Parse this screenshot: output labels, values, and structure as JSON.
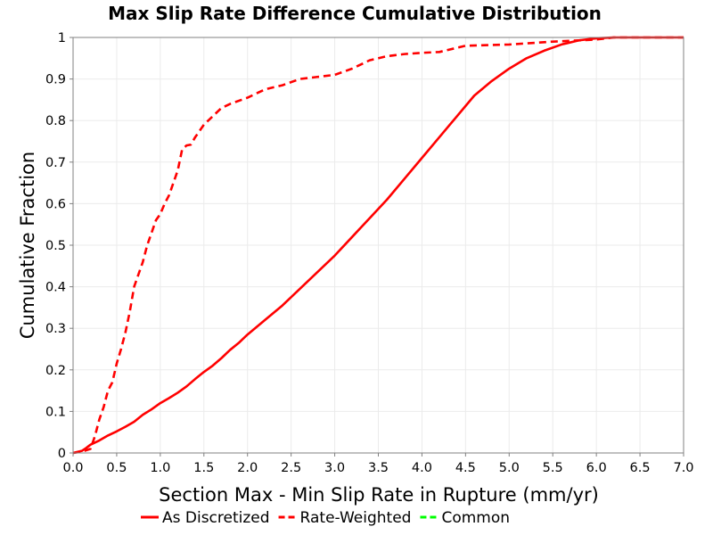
{
  "chart_data": {
    "type": "line",
    "title": "Max Slip Rate Difference Cumulative Distribution",
    "xlabel": "Section Max - Min Slip Rate in Rupture (mm/yr)",
    "ylabel": "Cumulative Fraction",
    "xlim": [
      0,
      7
    ],
    "ylim": [
      0,
      1
    ],
    "x_ticks": [
      "0.0",
      "0.5",
      "1.0",
      "1.5",
      "2.0",
      "2.5",
      "3.0",
      "3.5",
      "4.0",
      "4.5",
      "5.0",
      "5.5",
      "6.0",
      "6.5",
      "7.0"
    ],
    "y_ticks": [
      "0",
      "0.1",
      "0.2",
      "0.3",
      "0.4",
      "0.5",
      "0.6",
      "0.7",
      "0.8",
      "0.9",
      "1"
    ],
    "grid": true,
    "legend_position": "bottom",
    "series": [
      {
        "name": "As Discretized",
        "color": "#ff0000",
        "style": "solid",
        "x": [
          0.0,
          0.1,
          0.15,
          0.2,
          0.3,
          0.4,
          0.5,
          0.6,
          0.7,
          0.8,
          0.9,
          1.0,
          1.1,
          1.2,
          1.3,
          1.4,
          1.5,
          1.6,
          1.7,
          1.8,
          1.9,
          2.0,
          2.2,
          2.4,
          2.6,
          2.8,
          3.0,
          3.2,
          3.4,
          3.6,
          3.8,
          4.0,
          4.2,
          4.4,
          4.6,
          4.8,
          5.0,
          5.2,
          5.4,
          5.6,
          5.8,
          6.0,
          6.2,
          6.5,
          7.0
        ],
        "y": [
          0.0,
          0.005,
          0.012,
          0.02,
          0.03,
          0.042,
          0.052,
          0.063,
          0.075,
          0.092,
          0.105,
          0.12,
          0.132,
          0.145,
          0.16,
          0.178,
          0.195,
          0.21,
          0.228,
          0.248,
          0.265,
          0.285,
          0.32,
          0.355,
          0.395,
          0.435,
          0.475,
          0.52,
          0.565,
          0.61,
          0.66,
          0.71,
          0.76,
          0.81,
          0.86,
          0.895,
          0.925,
          0.95,
          0.968,
          0.983,
          0.993,
          0.998,
          1.0,
          1.0,
          1.0
        ]
      },
      {
        "name": "Rate-Weighted",
        "color": "#ff0000",
        "style": "dashed",
        "x": [
          0.0,
          0.1,
          0.2,
          0.25,
          0.3,
          0.35,
          0.4,
          0.45,
          0.5,
          0.55,
          0.6,
          0.65,
          0.7,
          0.75,
          0.8,
          0.85,
          0.9,
          0.95,
          1.0,
          1.05,
          1.1,
          1.15,
          1.2,
          1.25,
          1.3,
          1.35,
          1.4,
          1.5,
          1.6,
          1.7,
          1.8,
          2.0,
          2.2,
          2.4,
          2.6,
          2.8,
          3.0,
          3.2,
          3.4,
          3.6,
          3.8,
          4.0,
          4.2,
          4.4,
          4.5,
          5.0,
          5.5,
          6.0,
          6.2,
          7.0
        ],
        "y": [
          0.0,
          0.003,
          0.01,
          0.04,
          0.08,
          0.11,
          0.15,
          0.17,
          0.215,
          0.25,
          0.29,
          0.34,
          0.4,
          0.43,
          0.46,
          0.5,
          0.53,
          0.56,
          0.575,
          0.6,
          0.62,
          0.65,
          0.68,
          0.73,
          0.74,
          0.742,
          0.76,
          0.79,
          0.81,
          0.83,
          0.84,
          0.855,
          0.875,
          0.885,
          0.9,
          0.905,
          0.91,
          0.925,
          0.945,
          0.955,
          0.96,
          0.963,
          0.965,
          0.975,
          0.98,
          0.983,
          0.99,
          0.995,
          1.0,
          1.0
        ]
      },
      {
        "name": "Common",
        "color": "#00ff00",
        "style": "dashed",
        "x": [],
        "y": []
      }
    ]
  }
}
